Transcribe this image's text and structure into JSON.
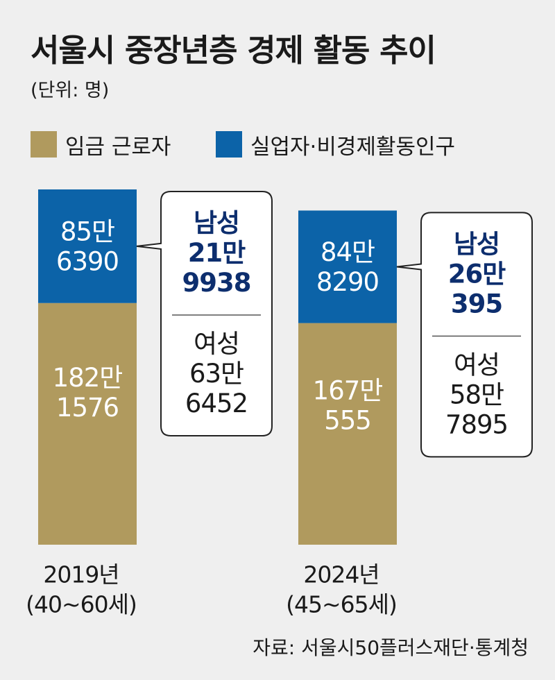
{
  "title": "서울시 중장년층 경제 활동 추이",
  "unit": "(단위: 명)",
  "legend": [
    {
      "label": "임금 근로자",
      "color": "#b09a5e"
    },
    {
      "label": "실업자·비경제활동인구",
      "color": "#0c63a8"
    }
  ],
  "source": "자료: 서울시50플러스재단·통계청",
  "chart_data": {
    "type": "bar",
    "stacked": true,
    "categories": [
      "2019년 (40~60세)",
      "2024년 (45~65세)"
    ],
    "category_lines": [
      [
        "2019년",
        "(40~60세)"
      ],
      [
        "2024년",
        "(45~65세)"
      ]
    ],
    "series": [
      {
        "name": "임금 근로자",
        "color": "#b09a5e",
        "values": [
          1821576,
          1670555
        ],
        "labels": [
          [
            "182만",
            "1576"
          ],
          [
            "167만",
            "555"
          ]
        ]
      },
      {
        "name": "실업자·비경제활동인구",
        "color": "#0c63a8",
        "values": [
          856390,
          848290
        ],
        "labels": [
          [
            "85만",
            "6390"
          ],
          [
            "84만",
            "8290"
          ]
        ]
      }
    ],
    "breakdown": [
      {
        "category": "2019년 (40~60세)",
        "male": {
          "label": "남성",
          "value": 219938,
          "lines": [
            "21만",
            "9938"
          ]
        },
        "female": {
          "label": "여성",
          "value": 636452,
          "lines": [
            "63만",
            "6452"
          ]
        }
      },
      {
        "category": "2024년 (45~65세)",
        "male": {
          "label": "남성",
          "value": 260395,
          "lines": [
            "26만",
            "395"
          ]
        },
        "female": {
          "label": "여성",
          "value": 587895,
          "lines": [
            "58만",
            "7895"
          ]
        }
      }
    ]
  }
}
